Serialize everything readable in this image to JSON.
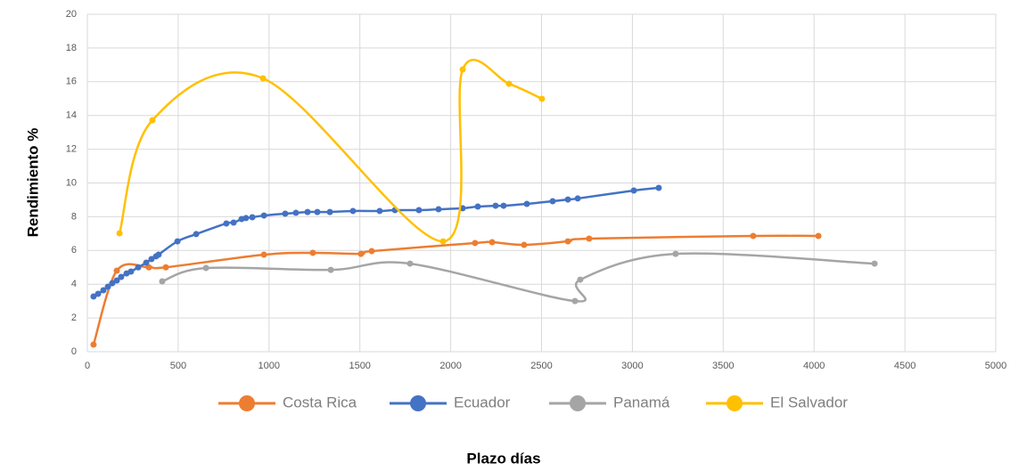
{
  "chart_data": {
    "type": "scatter",
    "x_label": "Plazo días",
    "y_label": "Rendimiento %",
    "xlim": [
      0,
      5000
    ],
    "xticks": [
      0,
      500,
      1000,
      1500,
      2000,
      2500,
      3000,
      3500,
      4000,
      4500,
      5000
    ],
    "ylim": [
      0,
      20
    ],
    "yticks": [
      0,
      2,
      4,
      6,
      8,
      10,
      12,
      14,
      16,
      18,
      20
    ],
    "grid": true,
    "smooth": true,
    "legend": "bottom",
    "series": [
      {
        "name": "Costa Rica",
        "color": "#ed7d31",
        "x": [
          34,
          162,
          339,
          432,
          972,
          1241,
          1506,
          1565,
          2134,
          2228,
          2404,
          2645,
          2762,
          3665,
          4024
        ],
        "values": [
          0.42,
          4.8,
          5.0,
          5.0,
          5.75,
          5.86,
          5.8,
          5.96,
          6.44,
          6.49,
          6.33,
          6.54,
          6.7,
          6.86,
          6.86
        ]
      },
      {
        "name": "Ecuador",
        "color": "#4472c4",
        "x": [
          34,
          59,
          88,
          113,
          137,
          162,
          186,
          216,
          240,
          280,
          324,
          353,
          378,
          392,
          496,
          599,
          765,
          805,
          849,
          873,
          908,
          972,
          1089,
          1148,
          1212,
          1266,
          1335,
          1462,
          1609,
          1693,
          1825,
          1933,
          2066,
          2149,
          2247,
          2291,
          2419,
          2561,
          2645,
          2699,
          3008,
          3145
        ],
        "values": [
          3.27,
          3.43,
          3.64,
          3.85,
          4.06,
          4.22,
          4.43,
          4.64,
          4.75,
          5.0,
          5.28,
          5.49,
          5.65,
          5.75,
          6.54,
          6.97,
          7.6,
          7.65,
          7.86,
          7.92,
          7.97,
          8.07,
          8.18,
          8.23,
          8.28,
          8.28,
          8.28,
          8.34,
          8.34,
          8.39,
          8.39,
          8.44,
          8.5,
          8.6,
          8.65,
          8.65,
          8.76,
          8.92,
          9.02,
          9.08,
          9.55,
          9.71
        ]
      },
      {
        "name": "Panamá",
        "color": "#a5a5a5",
        "x": [
          412,
          653,
          1340,
          1776,
          2684,
          2713,
          3238,
          4333
        ],
        "values": [
          4.17,
          4.96,
          4.85,
          5.22,
          3.0,
          4.27,
          5.8,
          5.22
        ]
      },
      {
        "name": "El Salvador",
        "color": "#ffc000",
        "x": [
          177,
          358,
          967,
          1958,
          2066,
          2321,
          2502
        ],
        "values": [
          7.02,
          13.72,
          16.2,
          6.54,
          16.73,
          15.88,
          14.99
        ]
      }
    ]
  }
}
